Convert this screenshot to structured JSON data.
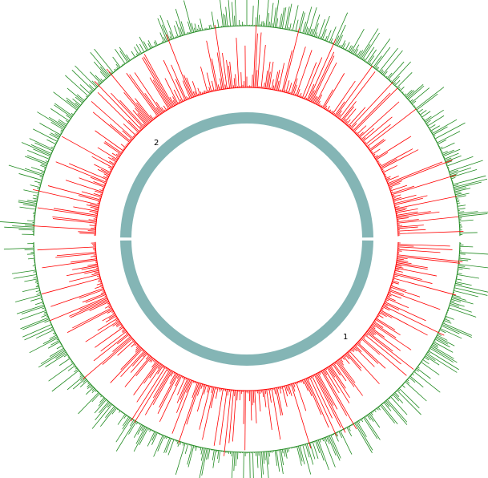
{
  "figure": {
    "type": "circular genome plot",
    "segments": [
      {
        "label": "1",
        "share": 0.5,
        "color": "#84b5b5"
      },
      {
        "label": "2",
        "share": 0.5,
        "color": "#84b5b5"
      }
    ],
    "tracks": [
      {
        "kind": "histogram",
        "color": "#ff0000",
        "bins": 720,
        "seed": 7
      },
      {
        "kind": "histogram",
        "color": "#228b22",
        "bins": 900,
        "seed": 13
      }
    ]
  }
}
